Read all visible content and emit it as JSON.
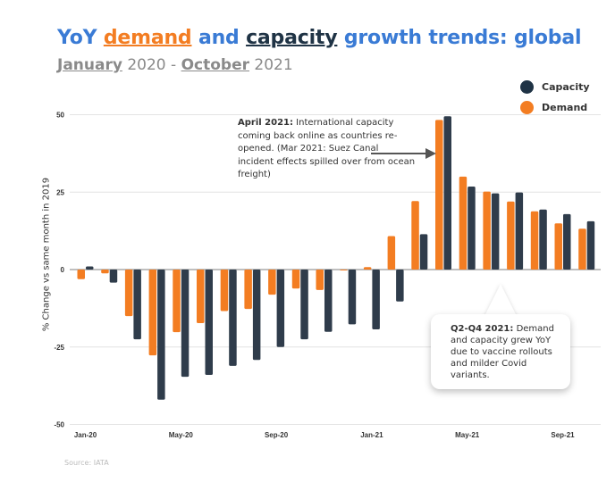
{
  "title": {
    "prefix": "YoY ",
    "demand": "demand",
    "mid": " and ",
    "capacity": "capacity",
    "suffix": " growth trends: global"
  },
  "subtitle": {
    "start_month": "January",
    "start_year": " 2020 - ",
    "end_month": "October",
    "end_year": " 2021"
  },
  "colors": {
    "title": "#3a7bd5",
    "demand": "#f37d22",
    "capacity": "#2f3c4b"
  },
  "annotations": {
    "april_bold": "April 2021:",
    "april_text": " International capacity coming back online as countries re-opened. (Mar 2021: Suez Canal incident effects spilled over from ocean freight)",
    "q2q4_bold": "Q2-Q4 2021:",
    "q2q4_text": " Demand and capacity grew YoY due to vaccine rollouts and milder Covid variants."
  },
  "source": "Source: IATA",
  "chart_data": {
    "type": "bar",
    "title": "YoY demand and capacity growth trends: global",
    "subtitle": "January 2020 - October 2021",
    "xlabel": "",
    "ylabel": "% Change vs same month in 2019",
    "ylim": [
      -50,
      50
    ],
    "yticks": [
      50,
      25,
      0,
      -25,
      -50
    ],
    "grid": true,
    "legend_position": "top-right",
    "categories": [
      "Jan-20",
      "Feb-20",
      "Mar-20",
      "Apr-20",
      "May-20",
      "Jun-20",
      "Jul-20",
      "Aug-20",
      "Sep-20",
      "Oct-20",
      "Nov-20",
      "Dec-20",
      "Jan-21",
      "Feb-21",
      "Mar-21",
      "Apr-21",
      "May-21",
      "Jun-21",
      "Jul-21",
      "Aug-21",
      "Sep-21",
      "Oct-21"
    ],
    "xtick_labels": [
      {
        "index": 0,
        "label": "Jan-20"
      },
      {
        "index": 4,
        "label": "May-20"
      },
      {
        "index": 8,
        "label": "Sep-20"
      },
      {
        "index": 12,
        "label": "Jan-21"
      },
      {
        "index": 16,
        "label": "May-21"
      },
      {
        "index": 20,
        "label": "Sep-21"
      }
    ],
    "series": [
      {
        "name": "Demand",
        "color": "#f37d22",
        "values": [
          -3.1,
          -1.2,
          -15.0,
          -27.7,
          -20.2,
          -17.3,
          -13.4,
          -12.7,
          -8.1,
          -6.1,
          -6.6,
          -0.3,
          0.8,
          10.8,
          22.1,
          48.3,
          30.0,
          25.2,
          22.0,
          18.8,
          14.9,
          13.2
        ]
      },
      {
        "name": "Capacity",
        "color": "#2f3c4b",
        "values": [
          1.0,
          -4.2,
          -22.5,
          -42.0,
          -34.6,
          -34.0,
          -31.1,
          -29.2,
          -25.0,
          -22.5,
          -20.1,
          -17.7,
          -19.3,
          -10.3,
          11.4,
          49.5,
          26.8,
          24.6,
          24.9,
          19.4,
          17.9,
          15.6
        ]
      }
    ],
    "legend": [
      "Capacity",
      "Demand"
    ]
  }
}
